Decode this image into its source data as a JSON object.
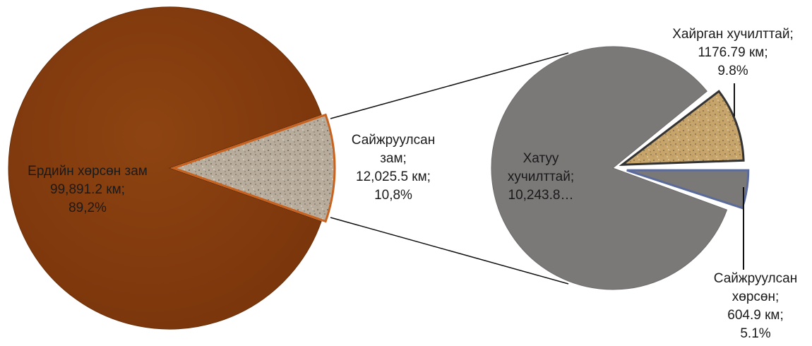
{
  "chart_data": [
    {
      "type": "pie",
      "slices": [
        {
          "name": "Ердийн хөрсөн зам",
          "value_text": "99,891.2 км;",
          "percent_text": "89,2%",
          "value": 99891.2,
          "percent": 89.2,
          "color": "#8a3f0e"
        },
        {
          "name_line1": "Сайжруулсан",
          "name_line2": "зам;",
          "value_text": "12,025.5 км;",
          "percent_text": "10,8%",
          "value": 12025.5,
          "percent": 10.8,
          "color": "#b5aa98",
          "pattern": "speckled"
        }
      ]
    },
    {
      "type": "pie",
      "slices": [
        {
          "name_line1": "Хатуу",
          "name_line2": "хучилттай;",
          "value_text": "10,243.8…",
          "value": 10243.8,
          "color": "#7b7878"
        },
        {
          "name": "Хайрган хучилттай;",
          "value_text": "1176.79 км;",
          "percent_text": "9.8%",
          "value": 1176.79,
          "percent": 9.8,
          "color": "#c9a66a",
          "pattern": "speckled"
        },
        {
          "name_line1": "Сайжруулсан",
          "name_line2": "хөрсөн;",
          "value_text": "604.9 км;",
          "percent_text": "5.1%",
          "value": 604.9,
          "percent": 5.1,
          "color": "#7b7878",
          "outline": "#5a6a9a"
        }
      ]
    }
  ]
}
